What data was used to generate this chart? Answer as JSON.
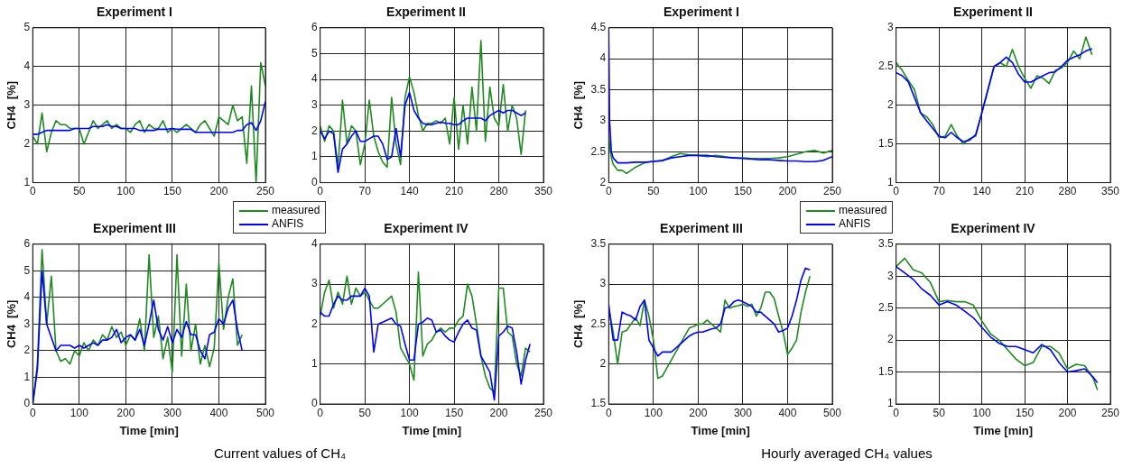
{
  "chart_data": [
    {
      "type": "line",
      "title": "Experiment I",
      "ylabel": "CH4  [%]",
      "legend": "bottom right",
      "x": [
        0,
        5,
        10,
        15,
        20,
        25,
        30,
        35,
        40,
        45,
        50,
        55,
        60,
        65,
        70,
        75,
        80,
        85,
        90,
        95,
        100,
        105,
        110,
        115,
        120,
        125,
        130,
        135,
        140,
        145,
        150,
        155,
        160,
        165,
        170,
        175,
        180,
        185,
        190,
        195,
        200,
        205,
        210,
        215,
        220,
        225,
        230,
        235,
        240,
        245,
        250
      ],
      "xlim": [
        0,
        250
      ],
      "ylim": [
        1,
        5
      ],
      "xticks": [
        0,
        50,
        100,
        150,
        200,
        250
      ],
      "yticks": [
        1,
        2,
        3,
        4,
        5
      ],
      "grid": true,
      "series": [
        {
          "name": "measured",
          "color": "#1f8a1f",
          "values": [
            2.2,
            2.0,
            2.8,
            1.8,
            2.3,
            2.6,
            2.5,
            2.5,
            2.4,
            2.4,
            2.4,
            2.0,
            2.3,
            2.6,
            2.4,
            2.5,
            2.6,
            2.4,
            2.5,
            2.4,
            2.4,
            2.3,
            2.5,
            2.6,
            2.3,
            2.5,
            2.4,
            2.4,
            2.6,
            2.3,
            2.4,
            2.3,
            2.4,
            2.5,
            2.4,
            2.3,
            2.5,
            2.6,
            2.4,
            2.2,
            2.7,
            2.6,
            2.5,
            3.0,
            2.6,
            2.7,
            1.5,
            3.5,
            1.0,
            4.1,
            3.5
          ]
        },
        {
          "name": "ANFIS",
          "color": "#0000ff",
          "values": [
            2.25,
            2.25,
            2.3,
            2.35,
            2.35,
            2.35,
            2.35,
            2.35,
            2.35,
            2.4,
            2.4,
            2.4,
            2.4,
            2.45,
            2.45,
            2.45,
            2.5,
            2.45,
            2.45,
            2.4,
            2.4,
            2.4,
            2.4,
            2.35,
            2.35,
            2.35,
            2.35,
            2.38,
            2.38,
            2.38,
            2.4,
            2.38,
            2.38,
            2.38,
            2.38,
            2.3,
            2.3,
            2.3,
            2.3,
            2.3,
            2.3,
            2.3,
            2.3,
            2.3,
            2.35,
            2.35,
            2.5,
            2.55,
            2.35,
            2.6,
            3.1
          ]
        }
      ]
    },
    {
      "type": "line",
      "title": "Experiment II",
      "x": [
        0,
        7,
        14,
        21,
        28,
        35,
        42,
        49,
        56,
        63,
        70,
        77,
        84,
        91,
        98,
        105,
        112,
        119,
        126,
        133,
        140,
        147,
        154,
        161,
        168,
        175,
        182,
        189,
        196,
        203,
        210,
        217,
        224,
        231,
        238,
        245,
        252,
        259,
        266,
        273,
        280,
        287,
        294,
        301,
        308,
        315,
        322
      ],
      "xlim": [
        0,
        350
      ],
      "ylim": [
        0,
        6
      ],
      "xticks": [
        0,
        70,
        140,
        210,
        280,
        350
      ],
      "yticks": [
        0,
        1,
        2,
        3,
        4,
        5,
        6
      ],
      "grid": true,
      "series": [
        {
          "color": "#1f8a1f",
          "values": [
            2.2,
            1.6,
            2.2,
            2.0,
            0.6,
            3.2,
            1.5,
            2.2,
            2.0,
            0.7,
            1.5,
            3.2,
            1.8,
            1.2,
            0.8,
            0.6,
            3.3,
            1.5,
            0.7,
            3.3,
            4.1,
            3.5,
            2.6,
            2.0,
            2.3,
            2.3,
            2.4,
            2.3,
            2.5,
            1.5,
            3.3,
            1.3,
            3.0,
            1.5,
            3.7,
            2.0,
            5.5,
            1.6,
            3.7,
            2.5,
            2.2,
            3.8,
            2.0,
            3.0,
            2.5,
            1.1,
            2.8
          ]
        },
        {
          "color": "#0000ff",
          "values": [
            2.0,
            1.7,
            2.0,
            1.9,
            0.4,
            1.3,
            1.5,
            1.8,
            2.0,
            1.6,
            1.6,
            1.7,
            1.8,
            1.8,
            1.5,
            0.9,
            1.0,
            2.1,
            1.0,
            3.0,
            3.5,
            2.8,
            2.5,
            2.3,
            2.25,
            2.25,
            2.3,
            2.35,
            2.3,
            2.3,
            2.25,
            2.25,
            2.4,
            2.5,
            2.5,
            2.5,
            2.5,
            2.4,
            2.6,
            2.7,
            2.8,
            2.7,
            2.8,
            2.8,
            2.7,
            2.6,
            2.7
          ]
        }
      ]
    },
    {
      "type": "line",
      "title": "Experiment III",
      "xlabel": "Time [min]",
      "ylabel": "CH4  [%]",
      "annotations": [
        "Current values of CH₄"
      ],
      "x": [
        0,
        10,
        20,
        30,
        40,
        50,
        60,
        70,
        80,
        90,
        100,
        110,
        120,
        130,
        140,
        150,
        160,
        170,
        180,
        190,
        200,
        210,
        220,
        230,
        240,
        250,
        260,
        270,
        280,
        290,
        300,
        310,
        320,
        330,
        340,
        350,
        360,
        370,
        380,
        390,
        400,
        410,
        420,
        430,
        440,
        450
      ],
      "xlim": [
        0,
        500
      ],
      "ylim": [
        0,
        6
      ],
      "xticks": [
        0,
        100,
        200,
        300,
        400,
        500
      ],
      "yticks": [
        0,
        1,
        2,
        3,
        4,
        5,
        6
      ],
      "grid": true,
      "series": [
        {
          "color": "#1f8a1f",
          "values": [
            0,
            1.5,
            5.8,
            3.0,
            4.8,
            2.0,
            1.6,
            1.7,
            1.5,
            2.0,
            1.8,
            2.3,
            2.0,
            2.4,
            2.2,
            2.6,
            2.4,
            2.9,
            2.5,
            2.7,
            2.2,
            2.6,
            2.4,
            3.2,
            2.0,
            5.6,
            2.5,
            3.3,
            1.7,
            2.5,
            1.2,
            5.6,
            1.8,
            4.5,
            2.0,
            3.0,
            1.5,
            2.2,
            1.4,
            2.1,
            5.3,
            2.8,
            4.0,
            4.7,
            2.2,
            2.6
          ]
        },
        {
          "color": "#0000ff",
          "values": [
            0,
            1.3,
            5.0,
            3.0,
            2.5,
            2.0,
            2.2,
            2.2,
            2.2,
            2.1,
            2.2,
            2.1,
            2.2,
            2.3,
            2.2,
            2.4,
            2.4,
            2.5,
            2.8,
            2.3,
            2.5,
            2.6,
            2.4,
            2.8,
            2.2,
            3.0,
            3.9,
            2.8,
            2.4,
            2.9,
            2.3,
            2.8,
            2.5,
            3.1,
            2.6,
            2.6,
            2.0,
            1.7,
            2.6,
            2.7,
            3.2,
            3.0,
            3.6,
            3.9,
            2.8,
            2.0
          ]
        }
      ]
    },
    {
      "type": "line",
      "title": "Experiment IV",
      "xlabel": "Time [min]",
      "x": [
        0,
        5,
        10,
        15,
        20,
        25,
        30,
        35,
        40,
        45,
        50,
        55,
        60,
        65,
        70,
        75,
        80,
        85,
        90,
        95,
        100,
        105,
        110,
        115,
        120,
        125,
        130,
        135,
        140,
        145,
        150,
        155,
        160,
        165,
        170,
        175,
        180,
        185,
        190,
        195,
        200,
        205,
        210,
        215,
        220,
        225,
        230,
        235
      ],
      "xlim": [
        0,
        250
      ],
      "ylim": [
        0,
        4
      ],
      "xticks": [
        0,
        50,
        100,
        150,
        200,
        250
      ],
      "yticks": [
        0,
        1,
        2,
        3,
        4
      ],
      "grid": true,
      "series": [
        {
          "color": "#1f8a1f",
          "values": [
            2.2,
            2.8,
            3.1,
            2.4,
            2.8,
            2.5,
            3.2,
            2.5,
            2.9,
            2.7,
            2.8,
            2.6,
            2.4,
            2.4,
            2.5,
            2.6,
            2.7,
            2.3,
            1.4,
            1.2,
            1.0,
            0.6,
            3.3,
            1.2,
            1.5,
            1.6,
            1.8,
            1.9,
            1.8,
            1.9,
            1.9,
            2.1,
            2.2,
            3.0,
            2.7,
            2.0,
            1.2,
            0.7,
            0.4,
            0.3,
            2.9,
            2.9,
            1.8,
            1.7,
            1.0,
            0.7,
            1.4,
            1.3
          ]
        },
        {
          "color": "#0000ff",
          "values": [
            2.3,
            2.2,
            2.2,
            2.5,
            2.7,
            2.6,
            2.6,
            2.7,
            2.7,
            2.7,
            2.9,
            2.7,
            1.3,
            2.0,
            2.05,
            2.1,
            2.15,
            2.0,
            1.95,
            1.5,
            1.1,
            1.1,
            2.0,
            2.05,
            2.15,
            2.1,
            1.8,
            1.85,
            1.7,
            1.6,
            1.55,
            1.8,
            2.0,
            2.1,
            1.9,
            1.85,
            1.2,
            1.0,
            0.8,
            0.1,
            1.7,
            1.8,
            1.95,
            1.9,
            1.3,
            0.5,
            1.1,
            1.5
          ]
        }
      ]
    },
    {
      "type": "line",
      "title": "Experiment I",
      "ylabel": "CH4  [%]",
      "legend": "bottom right",
      "x": [
        0,
        1,
        3,
        5,
        10,
        15,
        20,
        30,
        40,
        50,
        60,
        70,
        80,
        90,
        100,
        110,
        120,
        130,
        140,
        150,
        160,
        170,
        180,
        190,
        200,
        210,
        220,
        230,
        240,
        250
      ],
      "xlim": [
        0,
        250
      ],
      "ylim": [
        2,
        4.5
      ],
      "xticks": [
        0,
        50,
        100,
        150,
        200,
        250
      ],
      "yticks": [
        2,
        2.5,
        3,
        3.5,
        4,
        4.5
      ],
      "grid": true,
      "series": [
        {
          "name": "measured",
          "color": "#1f8a1f",
          "values": [
            2.8,
            2.6,
            2.4,
            2.3,
            2.2,
            2.2,
            2.15,
            2.25,
            2.32,
            2.35,
            2.35,
            2.42,
            2.47,
            2.45,
            2.44,
            2.42,
            2.44,
            2.42,
            2.4,
            2.4,
            2.39,
            2.39,
            2.39,
            2.4,
            2.42,
            2.46,
            2.5,
            2.52,
            2.48,
            2.52
          ]
        },
        {
          "name": "ANFIS",
          "color": "#0000ff",
          "values": [
            4.5,
            3.0,
            2.5,
            2.4,
            2.32,
            2.32,
            2.32,
            2.33,
            2.33,
            2.34,
            2.36,
            2.4,
            2.42,
            2.44,
            2.44,
            2.44,
            2.42,
            2.41,
            2.4,
            2.39,
            2.38,
            2.37,
            2.37,
            2.36,
            2.35,
            2.35,
            2.34,
            2.34,
            2.36,
            2.42
          ]
        }
      ]
    },
    {
      "type": "line",
      "title": "Experiment II",
      "x": [
        0,
        10,
        20,
        30,
        40,
        50,
        60,
        70,
        80,
        90,
        100,
        110,
        120,
        130,
        140,
        150,
        160,
        170,
        180,
        190,
        200,
        210,
        220,
        230,
        240,
        250,
        260,
        270,
        280,
        290,
        300,
        310,
        320
      ],
      "xlim": [
        0,
        350
      ],
      "ylim": [
        1,
        3
      ],
      "xticks": [
        0,
        70,
        140,
        210,
        280,
        350
      ],
      "yticks": [
        1,
        1.5,
        2,
        2.5,
        3
      ],
      "grid": true,
      "series": [
        {
          "color": "#1f8a1f",
          "values": [
            2.55,
            2.45,
            2.32,
            2.2,
            1.9,
            1.85,
            1.75,
            1.58,
            1.6,
            1.75,
            1.6,
            1.5,
            1.57,
            1.6,
            1.9,
            2.2,
            2.5,
            2.55,
            2.5,
            2.72,
            2.5,
            2.35,
            2.22,
            2.38,
            2.35,
            2.28,
            2.45,
            2.48,
            2.55,
            2.7,
            2.6,
            2.88,
            2.65
          ]
        },
        {
          "color": "#0000ff",
          "values": [
            2.42,
            2.38,
            2.3,
            2.1,
            1.9,
            1.8,
            1.7,
            1.6,
            1.58,
            1.65,
            1.58,
            1.53,
            1.55,
            1.62,
            1.9,
            2.2,
            2.5,
            2.55,
            2.62,
            2.55,
            2.4,
            2.3,
            2.3,
            2.34,
            2.38,
            2.42,
            2.43,
            2.5,
            2.58,
            2.62,
            2.65,
            2.7,
            2.73
          ]
        }
      ]
    },
    {
      "type": "line",
      "title": "Experiment III",
      "xlabel": "Time [min]",
      "ylabel": "CH4  [%]",
      "annotations": [
        "Hourly averaged CH₄ values"
      ],
      "x": [
        0,
        10,
        20,
        30,
        40,
        50,
        60,
        70,
        80,
        90,
        100,
        110,
        120,
        130,
        140,
        150,
        160,
        170,
        180,
        190,
        200,
        210,
        220,
        230,
        240,
        250,
        260,
        270,
        280,
        290,
        300,
        310,
        320,
        330,
        340,
        350,
        360,
        370,
        380,
        390,
        400,
        410,
        420,
        430,
        440,
        450
      ],
      "xlim": [
        0,
        500
      ],
      "ylim": [
        1.5,
        3.5
      ],
      "xticks": [
        0,
        100,
        200,
        300,
        400,
        500
      ],
      "yticks": [
        1.5,
        2,
        2.5,
        3,
        3.5
      ],
      "grid": true,
      "series": [
        {
          "color": "#1f8a1f",
          "values": [
            2.7,
            2.4,
            2.0,
            2.4,
            2.42,
            2.5,
            2.58,
            2.48,
            2.8,
            2.6,
            2.3,
            1.82,
            1.85,
            1.95,
            2.05,
            2.15,
            2.25,
            2.35,
            2.45,
            2.47,
            2.5,
            2.5,
            2.55,
            2.5,
            2.45,
            2.4,
            2.8,
            2.7,
            2.72,
            2.73,
            2.75,
            2.72,
            2.75,
            2.6,
            2.7,
            2.9,
            2.9,
            2.82,
            2.6,
            2.4,
            2.12,
            2.2,
            2.3,
            2.65,
            2.9,
            3.1
          ]
        },
        {
          "color": "#0000ff",
          "values": [
            2.75,
            2.3,
            2.3,
            2.65,
            2.62,
            2.6,
            2.55,
            2.72,
            2.8,
            2.3,
            2.2,
            2.1,
            2.15,
            2.15,
            2.15,
            2.2,
            2.25,
            2.3,
            2.35,
            2.38,
            2.4,
            2.4,
            2.42,
            2.44,
            2.45,
            2.5,
            2.7,
            2.72,
            2.78,
            2.8,
            2.78,
            2.75,
            2.72,
            2.65,
            2.65,
            2.6,
            2.55,
            2.5,
            2.4,
            2.42,
            2.45,
            2.6,
            2.8,
            3.05,
            3.2,
            3.18
          ]
        }
      ]
    },
    {
      "type": "line",
      "title": "Experiment IV",
      "xlabel": "Time [min]",
      "x": [
        0,
        10,
        20,
        30,
        40,
        50,
        60,
        70,
        80,
        90,
        100,
        110,
        120,
        130,
        140,
        150,
        160,
        170,
        180,
        190,
        200,
        210,
        220,
        230,
        235
      ],
      "xlim": [
        0,
        250
      ],
      "ylim": [
        1,
        3.5
      ],
      "xticks": [
        0,
        50,
        100,
        150,
        200,
        250
      ],
      "yticks": [
        1,
        1.5,
        2,
        2.5,
        3,
        3.5
      ],
      "grid": true,
      "series": [
        {
          "color": "#1f8a1f",
          "values": [
            3.15,
            3.28,
            3.1,
            3.05,
            2.9,
            2.6,
            2.62,
            2.6,
            2.6,
            2.55,
            2.3,
            2.1,
            2.0,
            1.85,
            1.7,
            1.6,
            1.65,
            1.9,
            1.9,
            1.8,
            1.55,
            1.62,
            1.6,
            1.4,
            1.22
          ]
        },
        {
          "color": "#0000ff",
          "values": [
            3.15,
            3.05,
            2.95,
            2.8,
            2.7,
            2.55,
            2.6,
            2.55,
            2.45,
            2.35,
            2.2,
            2.05,
            1.95,
            1.9,
            1.9,
            1.85,
            1.8,
            1.93,
            1.85,
            1.65,
            1.5,
            1.52,
            1.55,
            1.42,
            1.33
          ]
        }
      ]
    }
  ]
}
